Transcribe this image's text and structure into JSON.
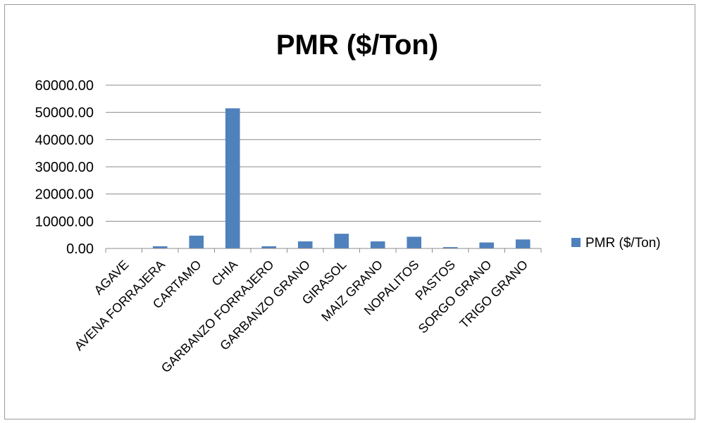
{
  "chart_data": {
    "type": "bar",
    "title": "PMR ($/Ton)",
    "categories": [
      "AGAVE",
      "AVENA FORRAJERA",
      "CARTAMO",
      "CHIA",
      "GARBANZO FORRAJERO",
      "GARBANZO GRANO",
      "GIRASOL",
      "MAIZ GRANO",
      "NOPALITOS",
      "PASTOS",
      "SORGO GRANO",
      "TRIGO GRANO"
    ],
    "series": [
      {
        "name": "PMR ($/Ton)",
        "color": "#4f81bd",
        "values": [
          0,
          800,
          4700,
          51500,
          800,
          2600,
          5400,
          2600,
          4300,
          500,
          2200,
          3300
        ]
      }
    ],
    "ylim": [
      0,
      60000
    ],
    "yticks": [
      "0.00",
      "10000.00",
      "20000.00",
      "30000.00",
      "40000.00",
      "50000.00",
      "60000.00"
    ],
    "ytick_values": [
      0,
      10000,
      20000,
      30000,
      40000,
      50000,
      60000
    ],
    "grid": true,
    "legend": "right"
  }
}
